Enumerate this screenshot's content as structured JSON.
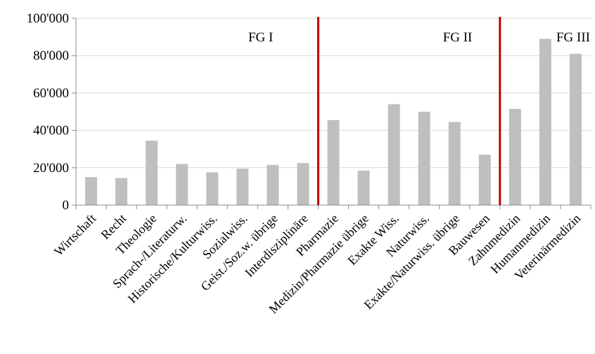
{
  "chart_data": {
    "type": "bar",
    "categories": [
      "Wirtschaft",
      "Recht",
      "Theologie",
      "Sprach-/Literaturw.",
      "Historische/Kulturwiss.",
      "Sozialwiss.",
      "Geist./Soz.w. übrige",
      "Interdisziplinäre",
      "Pharmazie",
      "Medizin/Pharmazie übrige",
      "Exakte Wiss.",
      "Naturwiss.",
      "Exakte/Naturwiss. übrige",
      "Bauwesen",
      "Zahnmedizin",
      "Humanmedizin",
      "Veterinärmedizin"
    ],
    "values": [
      15000,
      14500,
      34500,
      22000,
      17500,
      19500,
      21500,
      22500,
      45500,
      18500,
      54000,
      50000,
      44500,
      27000,
      51500,
      89000,
      81000
    ],
    "ylim": [
      0,
      100000
    ],
    "yticks": [
      {
        "value": 0,
        "label": "0"
      },
      {
        "value": 20000,
        "label": "20'000"
      },
      {
        "value": 40000,
        "label": "40'000"
      },
      {
        "value": 60000,
        "label": "60'000"
      },
      {
        "value": 80000,
        "label": "80'000"
      },
      {
        "value": 100000,
        "label": "100'000"
      }
    ],
    "grid": true,
    "bar_color": "#bfbfbf",
    "separator_color": "#c00000",
    "groups": [
      {
        "label": "FG I",
        "first_index": 0,
        "last_index": 7
      },
      {
        "label": "FG II",
        "first_index": 8,
        "last_index": 13
      },
      {
        "label": "FG III",
        "first_index": 14,
        "last_index": 16
      }
    ],
    "title": "",
    "xlabel": "",
    "ylabel": ""
  }
}
